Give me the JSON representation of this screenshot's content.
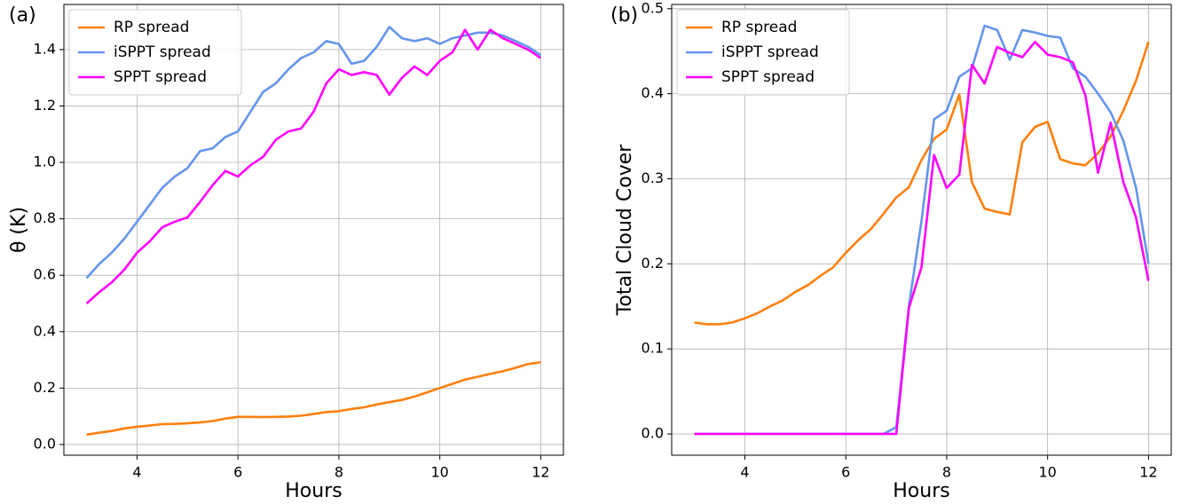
{
  "chart_data": [
    {
      "type": "line",
      "panel_label": "(a)",
      "xlabel": "Hours",
      "ylabel": "θ (K)",
      "x": [
        3,
        3.25,
        3.5,
        3.75,
        4,
        4.25,
        4.5,
        4.75,
        5,
        5.25,
        5.5,
        5.75,
        6,
        6.25,
        6.5,
        6.75,
        7,
        7.25,
        7.5,
        7.75,
        8,
        8.25,
        8.5,
        8.75,
        9,
        9.25,
        9.5,
        9.75,
        10,
        10.25,
        10.5,
        10.75,
        11,
        11.25,
        11.5,
        11.75,
        12
      ],
      "xlim": [
        2.55,
        12.45
      ],
      "xticks": [
        4,
        6,
        8,
        10,
        12
      ],
      "ylim": [
        -0.038,
        1.56
      ],
      "yticks": [
        {
          "value": 0,
          "label": "0.0"
        },
        0.2,
        0.4,
        0.6,
        0.8,
        {
          "value": 1,
          "label": "1.0"
        },
        1.2,
        1.4
      ],
      "grid": true,
      "legend": "upper left",
      "series": [
        {
          "name": "RP spread",
          "color": "#ff7f0e",
          "values": [
            0.035,
            0.042,
            0.048,
            0.057,
            0.063,
            0.067,
            0.072,
            0.073,
            0.075,
            0.078,
            0.083,
            0.092,
            0.098,
            0.098,
            0.097,
            0.098,
            0.099,
            0.102,
            0.108,
            0.115,
            0.118,
            0.126,
            0.132,
            0.142,
            0.15,
            0.158,
            0.17,
            0.185,
            0.2,
            0.215,
            0.23,
            0.24,
            0.25,
            0.26,
            0.272,
            0.285,
            0.292
          ]
        },
        {
          "name": "iSPPT spread",
          "color": "#6495ed",
          "values": [
            0.59,
            0.64,
            0.68,
            0.73,
            0.79,
            0.85,
            0.91,
            0.95,
            0.98,
            1.04,
            1.05,
            1.09,
            1.11,
            1.18,
            1.25,
            1.28,
            1.33,
            1.37,
            1.39,
            1.43,
            1.42,
            1.35,
            1.36,
            1.41,
            1.48,
            1.44,
            1.43,
            1.44,
            1.42,
            1.44,
            1.45,
            1.46,
            1.46,
            1.45,
            1.43,
            1.41,
            1.38
          ]
        },
        {
          "name": "SPPT spread",
          "color": "#ff00ff",
          "values": [
            0.5,
            0.54,
            0.575,
            0.62,
            0.68,
            0.72,
            0.77,
            0.79,
            0.805,
            0.86,
            0.92,
            0.97,
            0.95,
            0.99,
            1.02,
            1.08,
            1.11,
            1.12,
            1.18,
            1.28,
            1.33,
            1.31,
            1.32,
            1.31,
            1.24,
            1.3,
            1.34,
            1.31,
            1.36,
            1.39,
            1.47,
            1.4,
            1.47,
            1.44,
            1.42,
            1.4,
            1.37
          ]
        }
      ]
    },
    {
      "type": "line",
      "panel_label": "(b)",
      "xlabel": "Hours",
      "ylabel": "Total Cloud Cover",
      "x": [
        3,
        3.25,
        3.5,
        3.75,
        4,
        4.25,
        4.5,
        4.75,
        5,
        5.25,
        5.5,
        5.75,
        6,
        6.25,
        6.5,
        6.75,
        7,
        7.25,
        7.5,
        7.75,
        8,
        8.25,
        8.5,
        8.75,
        9,
        9.25,
        9.5,
        9.75,
        10,
        10.25,
        10.5,
        10.75,
        11,
        11.25,
        11.5,
        11.75,
        12
      ],
      "xlim": [
        2.55,
        12.45
      ],
      "xticks": [
        4,
        6,
        8,
        10,
        12
      ],
      "ylim": [
        -0.025,
        0.505
      ],
      "yticks": [
        {
          "value": 0,
          "label": "0.0"
        },
        0.1,
        0.2,
        0.3,
        0.4,
        0.5
      ],
      "grid": true,
      "legend": "upper left",
      "series": [
        {
          "name": "RP spread",
          "color": "#ff7f0e",
          "values": [
            0.131,
            0.129,
            0.129,
            0.131,
            0.136,
            0.142,
            0.15,
            0.157,
            0.167,
            0.175,
            0.186,
            0.196,
            0.213,
            0.228,
            0.241,
            0.259,
            0.278,
            0.29,
            0.322,
            0.347,
            0.358,
            0.399,
            0.296,
            0.265,
            0.261,
            0.258,
            0.343,
            0.361,
            0.367,
            0.323,
            0.318,
            0.316,
            0.33,
            0.35,
            0.38,
            0.415,
            0.461
          ]
        },
        {
          "name": "iSPPT spread",
          "color": "#6495ed",
          "values": [
            0,
            0,
            0,
            0,
            0,
            0,
            0,
            0,
            0,
            0,
            0,
            0,
            0,
            0,
            0,
            0,
            0.008,
            0.15,
            0.25,
            0.37,
            0.38,
            0.42,
            0.43,
            0.48,
            0.475,
            0.44,
            0.475,
            0.472,
            0.468,
            0.466,
            0.43,
            0.42,
            0.4,
            0.378,
            0.345,
            0.29,
            0.2
          ]
        },
        {
          "name": "SPPT spread",
          "color": "#ff00ff",
          "values": [
            0,
            0,
            0,
            0,
            0,
            0,
            0,
            0,
            0,
            0,
            0,
            0,
            0,
            0,
            0,
            0,
            0,
            0.148,
            0.196,
            0.328,
            0.289,
            0.305,
            0.434,
            0.412,
            0.455,
            0.448,
            0.443,
            0.461,
            0.446,
            0.443,
            0.437,
            0.398,
            0.307,
            0.366,
            0.296,
            0.255,
            0.18
          ]
        }
      ]
    }
  ]
}
